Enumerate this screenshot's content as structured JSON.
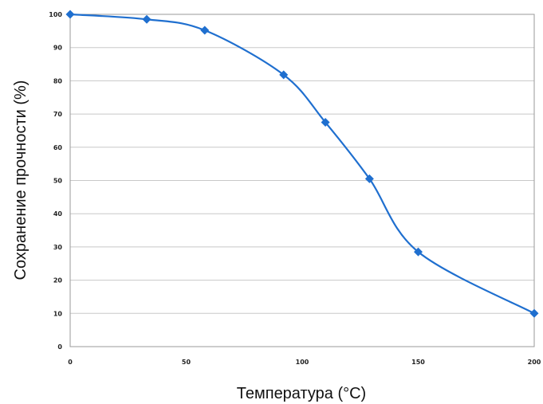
{
  "chart_data": {
    "type": "line",
    "title": "",
    "xlabel": "Температура (°C)",
    "ylabel": "Сохранение прочности (%)",
    "xlim": [
      0,
      200
    ],
    "ylim": [
      0,
      100
    ],
    "x_ticks": [
      "0",
      "50",
      "100",
      "150",
      "200"
    ],
    "y_ticks": [
      "0",
      "10",
      "20",
      "30",
      "40",
      "50",
      "60",
      "70",
      "80",
      "90",
      "100"
    ],
    "grid": true,
    "smooth": true,
    "marker": "diamond",
    "series": [
      {
        "color": "#1f6fcf",
        "x": [
          0,
          33,
          58,
          92,
          110,
          129,
          150,
          200
        ],
        "y": [
          100,
          98.5,
          95.2,
          81.8,
          67.5,
          50.5,
          28.5,
          10
        ]
      }
    ]
  }
}
